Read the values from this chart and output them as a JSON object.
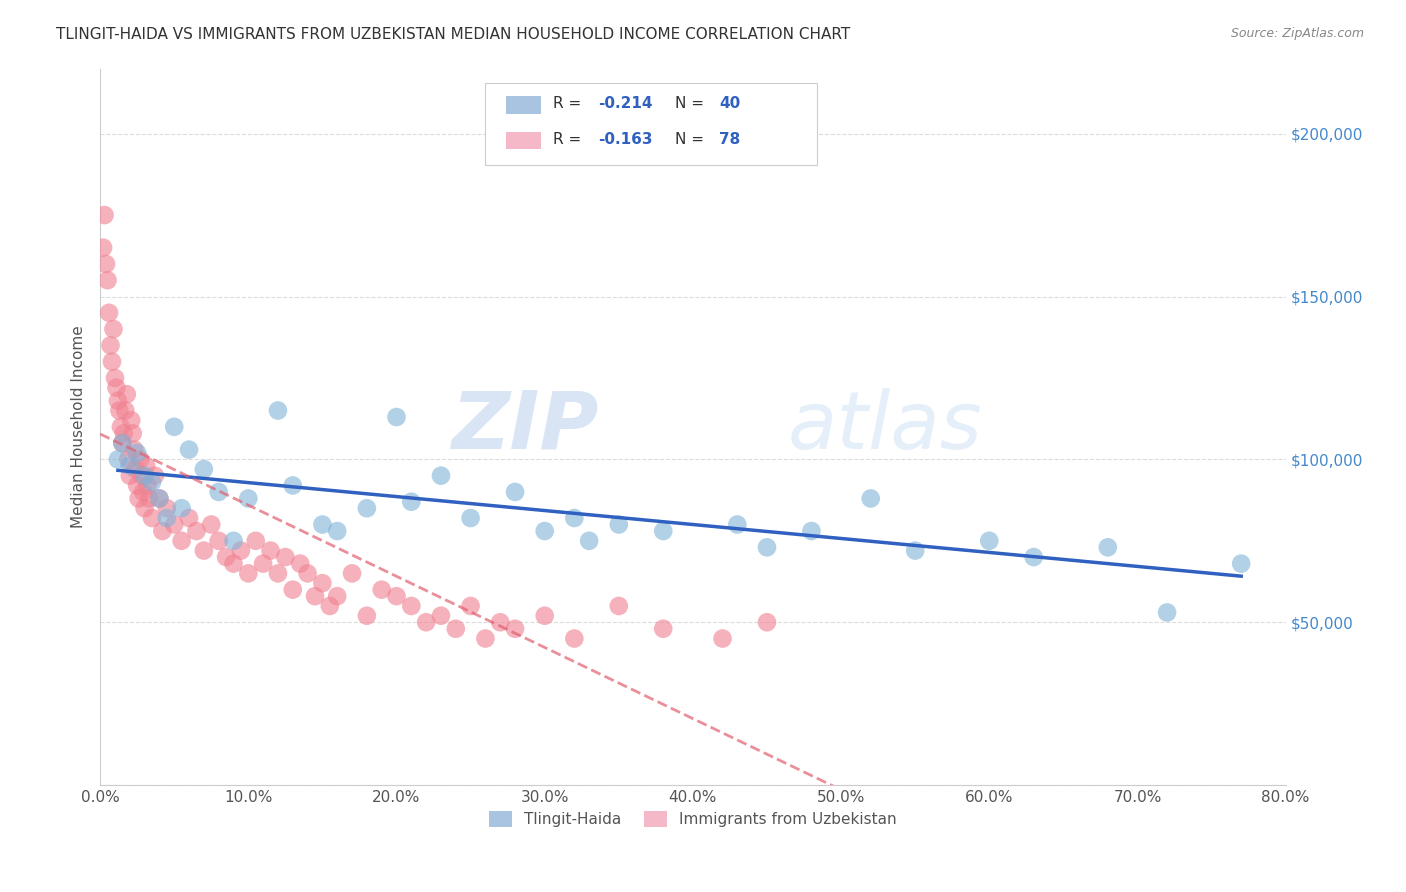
{
  "title": "TLINGIT-HAIDA VS IMMIGRANTS FROM UZBEKISTAN MEDIAN HOUSEHOLD INCOME CORRELATION CHART",
  "source": "Source: ZipAtlas.com",
  "ylabel": "Median Household Income",
  "xlabel_vals": [
    0.0,
    10.0,
    20.0,
    30.0,
    40.0,
    50.0,
    60.0,
    70.0,
    80.0
  ],
  "ylim": [
    0,
    220000
  ],
  "xlim": [
    0,
    80
  ],
  "yticks": [
    0,
    50000,
    100000,
    150000,
    200000
  ],
  "ytick_labels": [
    "",
    "$50,000",
    "$100,000",
    "$150,000",
    "$200,000"
  ],
  "legend1_color": "#a8c4e0",
  "legend2_color": "#f4b8c8",
  "tlingit_color": "#7fb3d8",
  "uzbek_color": "#f08090",
  "trendline_blue": "#3060c0",
  "trendline_pink": "#e06070",
  "watermark_zip": "ZIP",
  "watermark_atlas": "atlas",
  "tlingit_x": [
    1.2,
    1.5,
    2.0,
    2.5,
    3.0,
    3.5,
    4.0,
    4.5,
    5.0,
    5.5,
    6.0,
    7.0,
    8.0,
    9.0,
    10.0,
    12.0,
    13.0,
    15.0,
    16.0,
    18.0,
    20.0,
    21.0,
    23.0,
    25.0,
    28.0,
    30.0,
    32.0,
    33.0,
    35.0,
    38.0,
    43.0,
    45.0,
    48.0,
    52.0,
    55.0,
    60.0,
    63.0,
    68.0,
    72.0,
    77.0
  ],
  "tlingit_y": [
    100000,
    105000,
    98000,
    102000,
    95000,
    93000,
    88000,
    82000,
    110000,
    85000,
    103000,
    97000,
    90000,
    75000,
    88000,
    115000,
    92000,
    80000,
    78000,
    85000,
    113000,
    87000,
    95000,
    82000,
    90000,
    78000,
    82000,
    75000,
    80000,
    78000,
    80000,
    73000,
    78000,
    88000,
    72000,
    75000,
    70000,
    73000,
    53000,
    68000
  ],
  "uzbek_x": [
    0.2,
    0.3,
    0.4,
    0.5,
    0.6,
    0.7,
    0.8,
    0.9,
    1.0,
    1.1,
    1.2,
    1.3,
    1.4,
    1.5,
    1.6,
    1.7,
    1.8,
    1.9,
    2.0,
    2.1,
    2.2,
    2.3,
    2.4,
    2.5,
    2.6,
    2.7,
    2.8,
    2.9,
    3.0,
    3.1,
    3.2,
    3.3,
    3.5,
    3.7,
    4.0,
    4.2,
    4.5,
    5.0,
    5.5,
    6.0,
    6.5,
    7.0,
    7.5,
    8.0,
    8.5,
    9.0,
    9.5,
    10.0,
    10.5,
    11.0,
    11.5,
    12.0,
    12.5,
    13.0,
    13.5,
    14.0,
    14.5,
    15.0,
    15.5,
    16.0,
    17.0,
    18.0,
    19.0,
    20.0,
    21.0,
    22.0,
    23.0,
    24.0,
    25.0,
    26.0,
    27.0,
    28.0,
    30.0,
    32.0,
    35.0,
    38.0,
    42.0,
    45.0
  ],
  "uzbek_y": [
    165000,
    175000,
    160000,
    155000,
    145000,
    135000,
    130000,
    140000,
    125000,
    122000,
    118000,
    115000,
    110000,
    105000,
    108000,
    115000,
    120000,
    100000,
    95000,
    112000,
    108000,
    103000,
    97000,
    92000,
    88000,
    100000,
    95000,
    90000,
    85000,
    98000,
    92000,
    88000,
    82000,
    95000,
    88000,
    78000,
    85000,
    80000,
    75000,
    82000,
    78000,
    72000,
    80000,
    75000,
    70000,
    68000,
    72000,
    65000,
    75000,
    68000,
    72000,
    65000,
    70000,
    60000,
    68000,
    65000,
    58000,
    62000,
    55000,
    58000,
    65000,
    52000,
    60000,
    58000,
    55000,
    50000,
    52000,
    48000,
    55000,
    45000,
    50000,
    48000,
    52000,
    45000,
    55000,
    48000,
    45000,
    50000
  ]
}
